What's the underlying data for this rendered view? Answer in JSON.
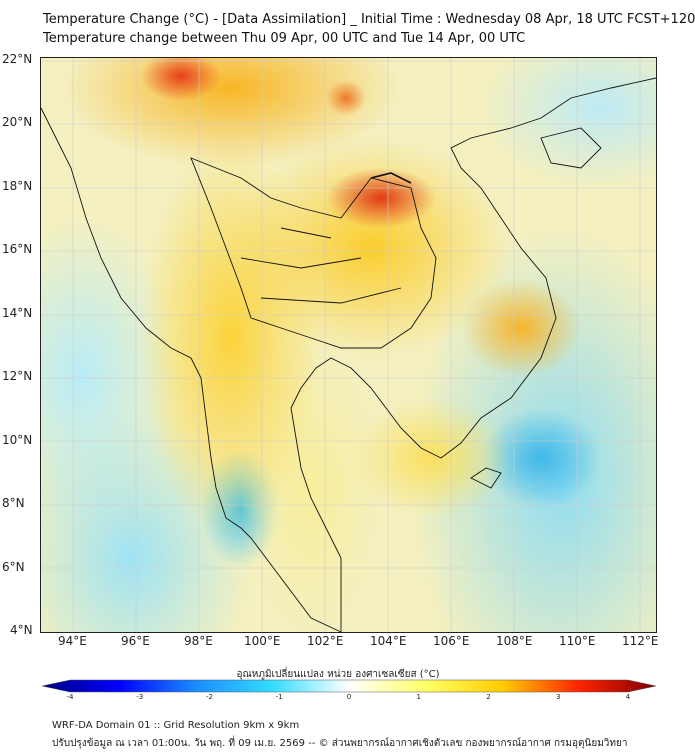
{
  "title": {
    "line1": "Temperature Change (°C) - [Data Assimilation] _ Initial Time : Wednesday 08 Apr, 18 UTC FCST+120",
    "line2": "Temperature change between Thu 09 Apr, 00 UTC and Tue 14 Apr, 00 UTC"
  },
  "map": {
    "lat_labels": [
      "22°N",
      "20°N",
      "18°N",
      "16°N",
      "14°N",
      "12°N",
      "10°N",
      "8°N",
      "6°N",
      "4°N"
    ],
    "lon_labels": [
      "94°E",
      "96°E",
      "98°E",
      "100°E",
      "102°E",
      "104°E",
      "106°E",
      "108°E",
      "110°E",
      "112°E"
    ]
  },
  "colorbar": {
    "title": "อุณหภูมิเปลี่ยนแปลง หน่วย องศาเซลเซียส (°C)",
    "ticks": [
      "-4",
      "-3",
      "-2",
      "-1",
      "0",
      "1",
      "2",
      "3",
      "4"
    ],
    "range": [
      -4,
      4
    ],
    "colors": [
      "#00007f",
      "#0000ff",
      "#1a8cff",
      "#33ddff",
      "#ffffff",
      "#ffff66",
      "#ffcc00",
      "#ff2200",
      "#7f0000"
    ]
  },
  "footer": {
    "line1": "WRF-DA Domain 01 :: Grid Resolution 9km x 9km",
    "line2": "ปรับปรุงข้อมูล ณ เวลา 01:00น. วัน พฤ. ที่ 09 เม.ย. 2569 -- © ส่วนพยากรณ์อากาศเชิงตัวเลข กองพยากรณ์อากาศ กรมอุตุนิยมวิทยา"
  }
}
